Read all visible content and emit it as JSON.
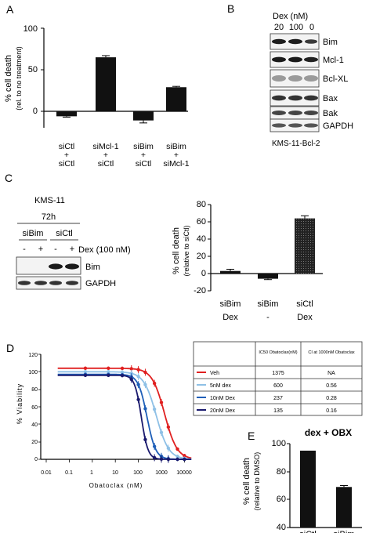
{
  "panel_letters": [
    "A",
    "B",
    "C",
    "D",
    "E"
  ],
  "panel_a": {
    "ylabel": "% cell death",
    "ylabel2": "(rel. to no treatment)",
    "yticks": [
      "100",
      "50",
      "0"
    ],
    "xlabels": [
      [
        "siCtl",
        "+",
        "siCtl"
      ],
      [
        "siMcl-1",
        "+",
        "siCtl"
      ],
      [
        "siBim",
        "+",
        "siCtl"
      ],
      [
        "siBim",
        "+",
        "siMcl-1"
      ]
    ]
  },
  "panel_b": {
    "header": "Dex (nM)",
    "lanes": [
      "20",
      "100",
      "0"
    ],
    "bands": [
      "Bim",
      "Mcl-1",
      "Bcl-XL",
      "Bax",
      "Bak",
      "GAPDH"
    ],
    "cell_line": "KMS-11-Bcl-2"
  },
  "panel_c_blot": {
    "cell_line": "KMS-11",
    "time": "72h",
    "groups": [
      "siBim",
      "siCtl"
    ],
    "signs": [
      "-",
      "+",
      "-",
      "+"
    ],
    "treatment": "Dex (100 nM)",
    "bands": [
      "Bim",
      "GAPDH"
    ]
  },
  "panel_c_chart": {
    "ylabel": "% cell death",
    "ylabel2": "(relative to siCtl)",
    "yticks": [
      "80",
      "60",
      "40",
      "20",
      "0",
      "-20"
    ],
    "xlabels": [
      [
        "siBim",
        "Dex"
      ],
      [
        "siBim",
        "-"
      ],
      [
        "siCtl",
        "Dex"
      ]
    ]
  },
  "panel_d": {
    "ylabel": "% Viability",
    "xlabel": "Obatoclax (nM)",
    "yticks": [
      "120",
      "100",
      "80",
      "60",
      "40",
      "20",
      "0"
    ],
    "xticks": [
      "0.01",
      "0.1",
      "1",
      "10",
      "100",
      "1000",
      "10000"
    ],
    "table": {
      "headers": [
        "",
        "IC50 Obatoclax(nM)",
        "CI at 1000nM Obatoclax"
      ],
      "rows": [
        {
          "label": "Veh",
          "ic50": "1375",
          "ci": "NA"
        },
        {
          "label": "5nM dex",
          "ic50": "600",
          "ci": "0.56"
        },
        {
          "label": "10nM Dex",
          "ic50": "237",
          "ci": "0.28"
        },
        {
          "label": "20nM Dex",
          "ic50": "135",
          "ci": "0.16"
        }
      ]
    }
  },
  "panel_e": {
    "title": "dex + OBX",
    "ylabel": "% cell death",
    "ylabel2": "(relative to DMSO)",
    "yticks": [
      "100",
      "80",
      "60",
      "40"
    ],
    "xlabels": [
      "siCtl",
      "siBim"
    ]
  },
  "colors": {
    "veh": "#e02020",
    "dex5": "#8ec0e6",
    "dex10": "#1f5fb8",
    "dex20": "#1a1a6e",
    "bar": "#111111"
  },
  "chart_data": [
    {
      "type": "bar",
      "categories": [
        "siCtl + siCtl",
        "siMcl-1 + siCtl",
        "siBim + siCtl",
        "siBim + siMcl-1"
      ],
      "values": [
        -6,
        65,
        -11,
        29
      ],
      "errors": [
        1,
        2,
        3,
        1
      ],
      "ylabel": "% cell death (rel. to no treatment)",
      "ylim": [
        -20,
        100
      ]
    },
    {
      "type": "bar",
      "categories": [
        "siBim Dex",
        "siBim -",
        "siCtl Dex"
      ],
      "values": [
        3,
        -6,
        64
      ],
      "errors": [
        2,
        1,
        3
      ],
      "ylabel": "% cell death (relative to siCtl)",
      "ylim": [
        -20,
        80
      ]
    },
    {
      "type": "line",
      "xscale": "log",
      "xlim": [
        0.01,
        30000
      ],
      "ylim": [
        0,
        120
      ],
      "xlabel": "Obatoclax (nM)",
      "ylabel": "% Viability",
      "series": [
        {
          "name": "Veh",
          "top": 104,
          "ic50": 1375,
          "hill": 1.6
        },
        {
          "name": "5nM dex",
          "top": 100,
          "ic50": 600,
          "hill": 1.6
        },
        {
          "name": "10nM Dex",
          "top": 97,
          "ic50": 237,
          "hill": 2.3
        },
        {
          "name": "20nM Dex",
          "top": 96,
          "ic50": 135,
          "hill": 3.0
        }
      ],
      "x": [
        0.5,
        5,
        20,
        50,
        100,
        200,
        500,
        1000,
        2000,
        5000,
        10000
      ]
    },
    {
      "type": "bar",
      "categories": [
        "siCtl",
        "siBim"
      ],
      "values": [
        95,
        69
      ],
      "errors": [
        0,
        1
      ],
      "title": "dex + OBX",
      "ylabel": "% cell death (relative to DMSO)",
      "ylim": [
        40,
        100
      ]
    }
  ]
}
